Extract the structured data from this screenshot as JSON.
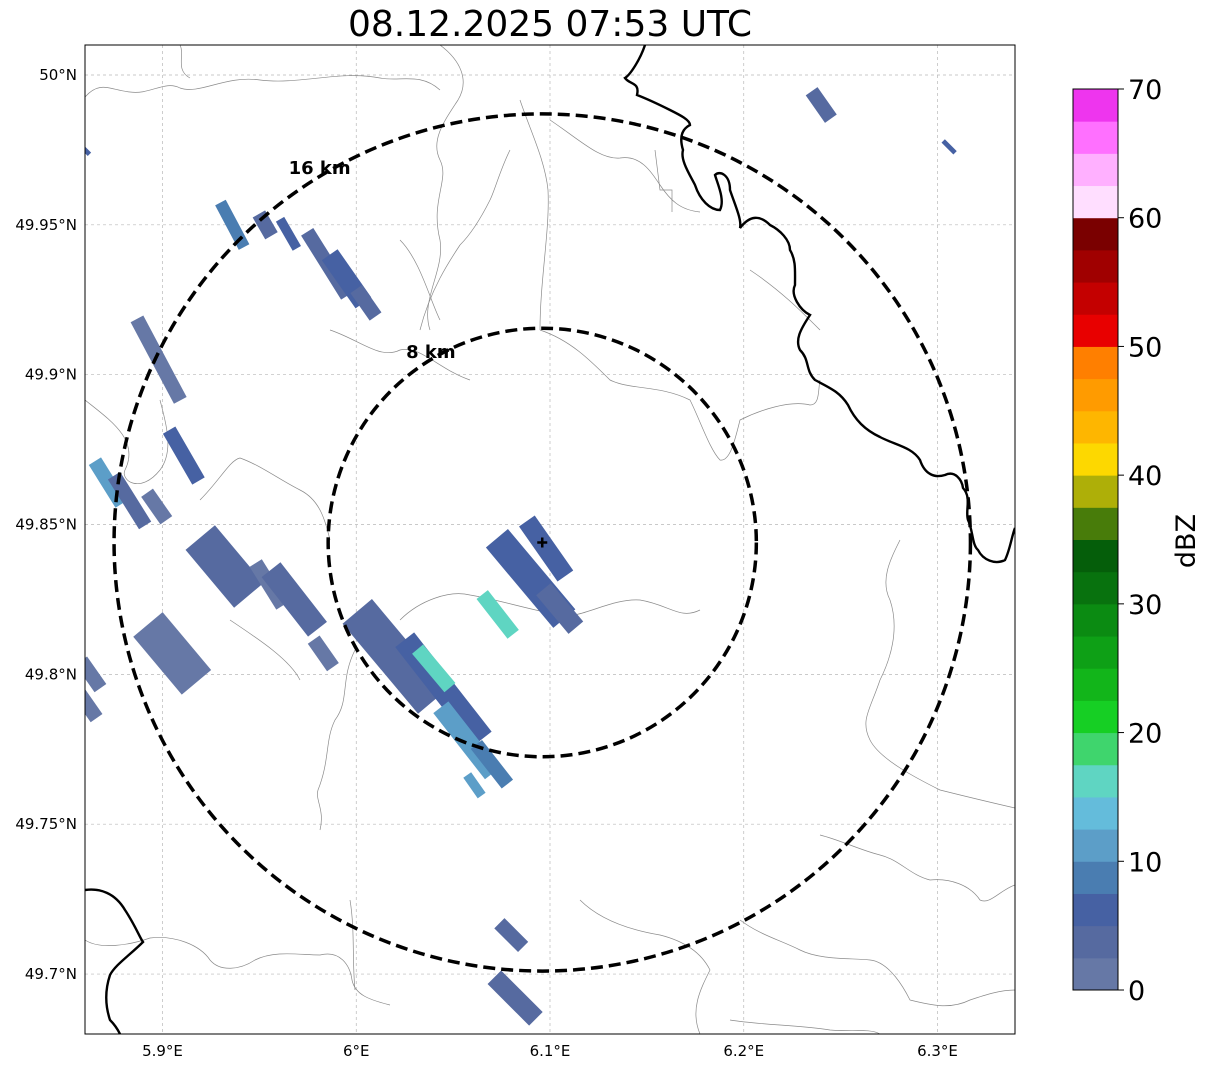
{
  "title": "08.12.2025 07:53 UTC",
  "map": {
    "lon_range": [
      5.86,
      6.34
    ],
    "lat_range": [
      49.68,
      50.01
    ],
    "center": {
      "lon": 6.096,
      "lat": 49.844
    },
    "rings": [
      {
        "label": "16 km",
        "lat_radius": 0.143,
        "lon_radius": 0.221
      },
      {
        "label": "8 km",
        "lat_radius": 0.0715,
        "lon_radius": 0.1105
      }
    ],
    "x_ticks": [
      {
        "value": 5.9,
        "label": "5.9°E"
      },
      {
        "value": 6.0,
        "label": "6°E"
      },
      {
        "value": 6.1,
        "label": "6.1°E"
      },
      {
        "value": 6.2,
        "label": "6.2°E"
      },
      {
        "value": 6.3,
        "label": "6.3°E"
      }
    ],
    "y_ticks": [
      {
        "value": 50.0,
        "label": "50°N"
      },
      {
        "value": 49.95,
        "label": "49.95°N"
      },
      {
        "value": 49.9,
        "label": "49.9°N"
      },
      {
        "value": 49.85,
        "label": "49.85°N"
      },
      {
        "value": 49.8,
        "label": "49.8°N"
      },
      {
        "value": 49.75,
        "label": "49.75°N"
      },
      {
        "value": 49.7,
        "label": "49.7°N"
      }
    ],
    "grid": true,
    "echoes": [
      {
        "lon": 5.936,
        "lat": 49.95,
        "dbz": 8,
        "len": 0.012,
        "wid": 0.0025,
        "angle": 62
      },
      {
        "lon": 5.953,
        "lat": 49.95,
        "dbz": 3,
        "len": 0.006,
        "wid": 0.003,
        "angle": 60
      },
      {
        "lon": 5.965,
        "lat": 49.947,
        "dbz": 6,
        "len": 0.008,
        "wid": 0.002,
        "angle": 60
      },
      {
        "lon": 5.985,
        "lat": 49.937,
        "dbz": 4,
        "len": 0.018,
        "wid": 0.003,
        "angle": 58
      },
      {
        "lon": 5.995,
        "lat": 49.932,
        "dbz": 7,
        "len": 0.014,
        "wid": 0.004,
        "angle": 55
      },
      {
        "lon": 6.005,
        "lat": 49.924,
        "dbz": 3,
        "len": 0.008,
        "wid": 0.003,
        "angle": 55
      },
      {
        "lon": 5.898,
        "lat": 49.905,
        "dbz": 2,
        "len": 0.022,
        "wid": 0.003,
        "angle": 62
      },
      {
        "lon": 5.911,
        "lat": 49.873,
        "dbz": 6,
        "len": 0.014,
        "wid": 0.003,
        "angle": 60
      },
      {
        "lon": 5.872,
        "lat": 49.864,
        "dbz": 12,
        "len": 0.012,
        "wid": 0.003,
        "angle": 58
      },
      {
        "lon": 5.883,
        "lat": 49.858,
        "dbz": 4,
        "len": 0.014,
        "wid": 0.003,
        "angle": 58
      },
      {
        "lon": 5.897,
        "lat": 49.856,
        "dbz": 2,
        "len": 0.008,
        "wid": 0.003,
        "angle": 55
      },
      {
        "lon": 5.932,
        "lat": 49.836,
        "dbz": 3,
        "len": 0.018,
        "wid": 0.008,
        "angle": 50
      },
      {
        "lon": 5.955,
        "lat": 49.83,
        "dbz": 2,
        "len": 0.012,
        "wid": 0.003,
        "angle": 58
      },
      {
        "lon": 5.968,
        "lat": 49.825,
        "dbz": 3,
        "len": 0.018,
        "wid": 0.005,
        "angle": 52
      },
      {
        "lon": 5.983,
        "lat": 49.807,
        "dbz": 2,
        "len": 0.008,
        "wid": 0.003,
        "angle": 55
      },
      {
        "lon": 5.905,
        "lat": 49.807,
        "dbz": 1,
        "len": 0.018,
        "wid": 0.008,
        "angle": 50
      },
      {
        "lon": 5.863,
        "lat": 49.8,
        "dbz": 2,
        "len": 0.008,
        "wid": 0.003,
        "angle": 55
      },
      {
        "lon": 5.861,
        "lat": 49.79,
        "dbz": 2,
        "len": 0.008,
        "wid": 0.003,
        "angle": 55
      },
      {
        "lon": 6.02,
        "lat": 49.806,
        "dbz": 3,
        "len": 0.028,
        "wid": 0.008,
        "angle": 50
      },
      {
        "lon": 6.045,
        "lat": 49.795,
        "dbz": 7,
        "len": 0.03,
        "wid": 0.005,
        "angle": 52
      },
      {
        "lon": 6.04,
        "lat": 49.802,
        "dbz": 16,
        "len": 0.012,
        "wid": 0.003,
        "angle": 50
      },
      {
        "lon": 6.057,
        "lat": 49.778,
        "dbz": 11,
        "len": 0.02,
        "wid": 0.004,
        "angle": 52
      },
      {
        "lon": 6.07,
        "lat": 49.77,
        "dbz": 9,
        "len": 0.012,
        "wid": 0.003,
        "angle": 52
      },
      {
        "lon": 6.061,
        "lat": 49.763,
        "dbz": 12,
        "len": 0.006,
        "wid": 0.002,
        "angle": 55
      },
      {
        "lon": 6.073,
        "lat": 49.82,
        "dbz": 16,
        "len": 0.012,
        "wid": 0.003,
        "angle": 52
      },
      {
        "lon": 6.09,
        "lat": 49.832,
        "dbz": 6,
        "len": 0.025,
        "wid": 0.006,
        "angle": 50
      },
      {
        "lon": 6.098,
        "lat": 49.842,
        "dbz": 7,
        "len": 0.016,
        "wid": 0.004,
        "angle": 55
      },
      {
        "lon": 6.105,
        "lat": 49.822,
        "dbz": 3,
        "len": 0.012,
        "wid": 0.004,
        "angle": 50
      },
      {
        "lon": 6.08,
        "lat": 49.713,
        "dbz": 4,
        "len": 0.008,
        "wid": 0.003,
        "angle": 45
      },
      {
        "lon": 6.082,
        "lat": 49.692,
        "dbz": 3,
        "len": 0.014,
        "wid": 0.004,
        "angle": 45
      },
      {
        "lon": 6.24,
        "lat": 49.99,
        "dbz": 3,
        "len": 0.008,
        "wid": 0.003,
        "angle": 55
      },
      {
        "lon": 6.306,
        "lat": 49.976,
        "dbz": 7,
        "len": 0.004,
        "wid": 0.001,
        "angle": 45
      },
      {
        "lon": 5.86,
        "lat": 49.975,
        "dbz": 6,
        "len": 0.003,
        "wid": 0.001,
        "angle": 45
      }
    ]
  },
  "colorbar": {
    "label": "dBZ",
    "min": 0,
    "max": 70,
    "step": 2.5,
    "ticks": [
      0,
      10,
      20,
      30,
      40,
      50,
      60,
      70
    ],
    "colors": [
      "#6678a6",
      "#566aa0",
      "#4661a3",
      "#4a7db1",
      "#5c9ec8",
      "#64bcdb",
      "#5fd5c2",
      "#3fd56d",
      "#16cf24",
      "#12b51a",
      "#0ea016",
      "#0b8b12",
      "#08720e",
      "#055e0a",
      "#487c0a",
      "#aeaf08",
      "#fdd800",
      "#feb600",
      "#ff9b00",
      "#ff7f00",
      "#e80000",
      "#c40000",
      "#a00000",
      "#7a0000",
      "#ffdeff",
      "#ffb0ff",
      "#ff70ff",
      "#ee35ee"
    ]
  }
}
